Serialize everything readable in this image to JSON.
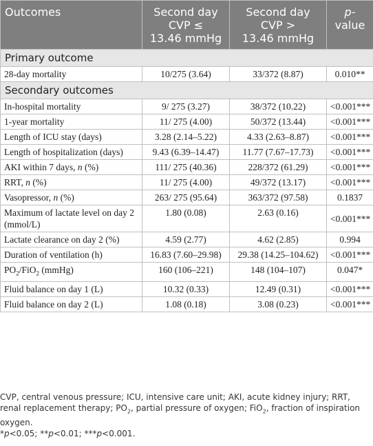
{
  "header": {
    "outcomes": "Outcomes",
    "col2": [
      "Second day",
      "CVP ≤",
      "13.46 mmHg"
    ],
    "col3": [
      "Second day",
      "CVP >",
      "13.46 mmHg"
    ],
    "col4": [
      "p-",
      "value"
    ]
  },
  "sections": [
    {
      "title": "Primary outcome",
      "rows": [
        {
          "label": "28-day mortality",
          "a": "10/275 (3.64)",
          "b": "33/372 (8.87)",
          "p": "0.010**"
        }
      ]
    },
    {
      "title": "Secondary outcomes",
      "rows": [
        {
          "label": "In-hospital mortality",
          "a": "9/ 275 (3.27)",
          "b": "38/372 (10.22)",
          "p": "<0.001***"
        },
        {
          "label": "1-year mortality",
          "a": "11/ 275 (4.00)",
          "b": "50/372 (13.44)",
          "p": "<0.001***"
        },
        {
          "label": "Length of ICU stay (days)",
          "a": "3.28 (2.14–5.22)",
          "b": "4.33 (2.63–8.87)",
          "p": "<0.001***"
        },
        {
          "label": "Length of hospitalization (days)",
          "a": "9.43 (6.39–14.47)",
          "b": "11.77 (7.67–17.73)",
          "p": "<0.001***"
        },
        {
          "label": "AKI within 7 days, n (%)",
          "a": "111/ 275 (40.36)",
          "b": "228/372 (61.29)",
          "p": "<0.001***"
        },
        {
          "label": "RRT, n (%)",
          "a": "11/ 275 (4.00)",
          "b": "49/372 (13.17)",
          "p": "<0.001***"
        },
        {
          "label": "Vasopressor, n (%)",
          "a": "263/ 275 (95.64)",
          "b": "363/372 (97.58)",
          "p": "0.1837"
        },
        {
          "label": "Maximum of lactate level on day 2 (mmol/L)",
          "a": "1.80 (0.08)",
          "b": "2.63 (0.16)",
          "p": "<0.001***"
        },
        {
          "label": "Lactate clearance on day 2 (%)",
          "a": "4.59 (2.77)",
          "b": "4.62 (2.85)",
          "p": "0.994"
        },
        {
          "label": "Duration of ventilation (h)",
          "a": "16.83 (7.60–29.98)",
          "b": "29.38 (14.25–104.62)",
          "p": "<0.001***"
        },
        {
          "label": "PO2/FiO2 (mmHg)",
          "a": "160 (106–221)",
          "b": "148 (104–107)",
          "p": "0.047*"
        },
        {
          "label": "Fluid balance on day 1 (L)",
          "a": "10.32 (0.33)",
          "b": "12.49 (0.31)",
          "p": "<0.001***"
        },
        {
          "label": "Fluid balance on day 2 (L)",
          "a": "1.08 (0.18)",
          "b": "3.08 (0.23)",
          "p": "<0.001***"
        }
      ]
    }
  ],
  "footnote": "CVP, central venous pressure; ICU, intensive care unit; AKI, acute kidney injury; RRT, renal replacement therapy; PO2, partial pressure of oxygen; FiO2, fraction of inspiration oxygen.",
  "significance": "*p<0.05; **p<0.01; ***p<0.001."
}
